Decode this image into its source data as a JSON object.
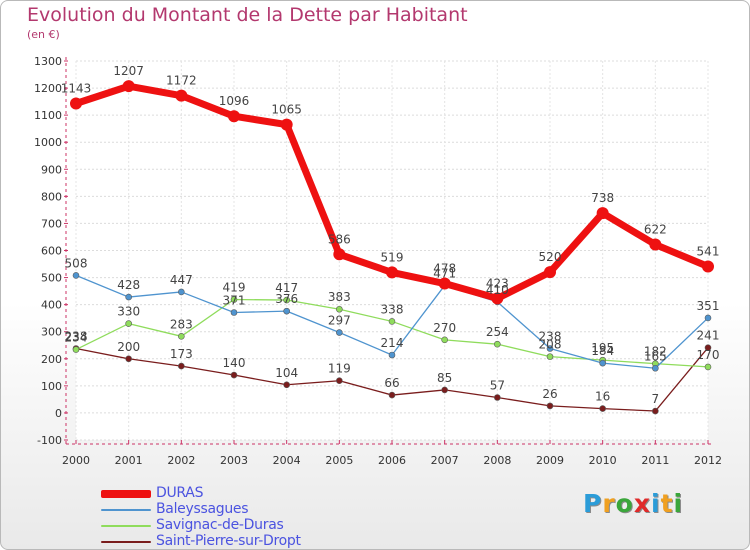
{
  "title": "Evolution du Montant de la Dette par Habitant",
  "subtitle": "(en €)",
  "logo": {
    "text": "Proxiti",
    "colors": [
      "#2b9cd8",
      "#f0a020",
      "#3aa63a",
      "#e02a2a",
      "#2b9cd8",
      "#f0a020",
      "#3aa63a"
    ]
  },
  "chart_data": {
    "type": "line",
    "title": "Evolution du Montant de la Dette par Habitant",
    "ylabel": "(en €)",
    "xlabel": "",
    "x": [
      "2000",
      "2001",
      "2002",
      "2003",
      "2004",
      "2005",
      "2006",
      "2007",
      "2008",
      "2009",
      "2010",
      "2011",
      "2012"
    ],
    "ylim": [
      -100,
      1300
    ],
    "yticks": [
      "-100",
      "0",
      "100",
      "200",
      "300",
      "400",
      "500",
      "600",
      "700",
      "800",
      "900",
      "1000",
      "1100",
      "1200",
      "1300"
    ],
    "grid": true,
    "legend_position": "bottom-left",
    "series": [
      {
        "name": "DURAS",
        "color": "#ee1111",
        "values": [
          1143,
          1207,
          1172,
          1096,
          1065,
          586,
          519,
          478,
          423,
          520,
          738,
          622,
          541
        ],
        "labels": [
          "1143",
          "1207",
          "1172",
          "1096",
          "1065",
          "586",
          "519",
          "478",
          "423",
          "520",
          "738",
          "622",
          "541"
        ]
      },
      {
        "name": "Baleyssagues",
        "color": "#4f94cf",
        "values": [
          508,
          428,
          447,
          371,
          376,
          297,
          214,
          471,
          410,
          238,
          184,
          165,
          351
        ],
        "labels": [
          "508",
          "428",
          "447",
          "371",
          "376",
          "297",
          "214",
          "471",
          "410",
          "238",
          "184",
          "165",
          "351"
        ]
      },
      {
        "name": "Savignac-de-Duras",
        "color": "#8fdc5c",
        "values": [
          234,
          330,
          283,
          419,
          417,
          383,
          338,
          270,
          254,
          208,
          195,
          182,
          170
        ],
        "labels": [
          "234",
          "330",
          "283",
          "419",
          "417",
          "383",
          "338",
          "270",
          "254",
          "208",
          "195",
          "182",
          "170"
        ]
      },
      {
        "name": "Saint-Pierre-sur-Dropt",
        "color": "#7a1d1d",
        "values": [
          238,
          200,
          173,
          140,
          104,
          119,
          66,
          85,
          57,
          26,
          16,
          7,
          241
        ],
        "labels": [
          "238",
          "200",
          "173",
          "140",
          "104",
          "119",
          "66",
          "85",
          "57",
          "26",
          "16",
          "7",
          "241"
        ]
      }
    ]
  }
}
